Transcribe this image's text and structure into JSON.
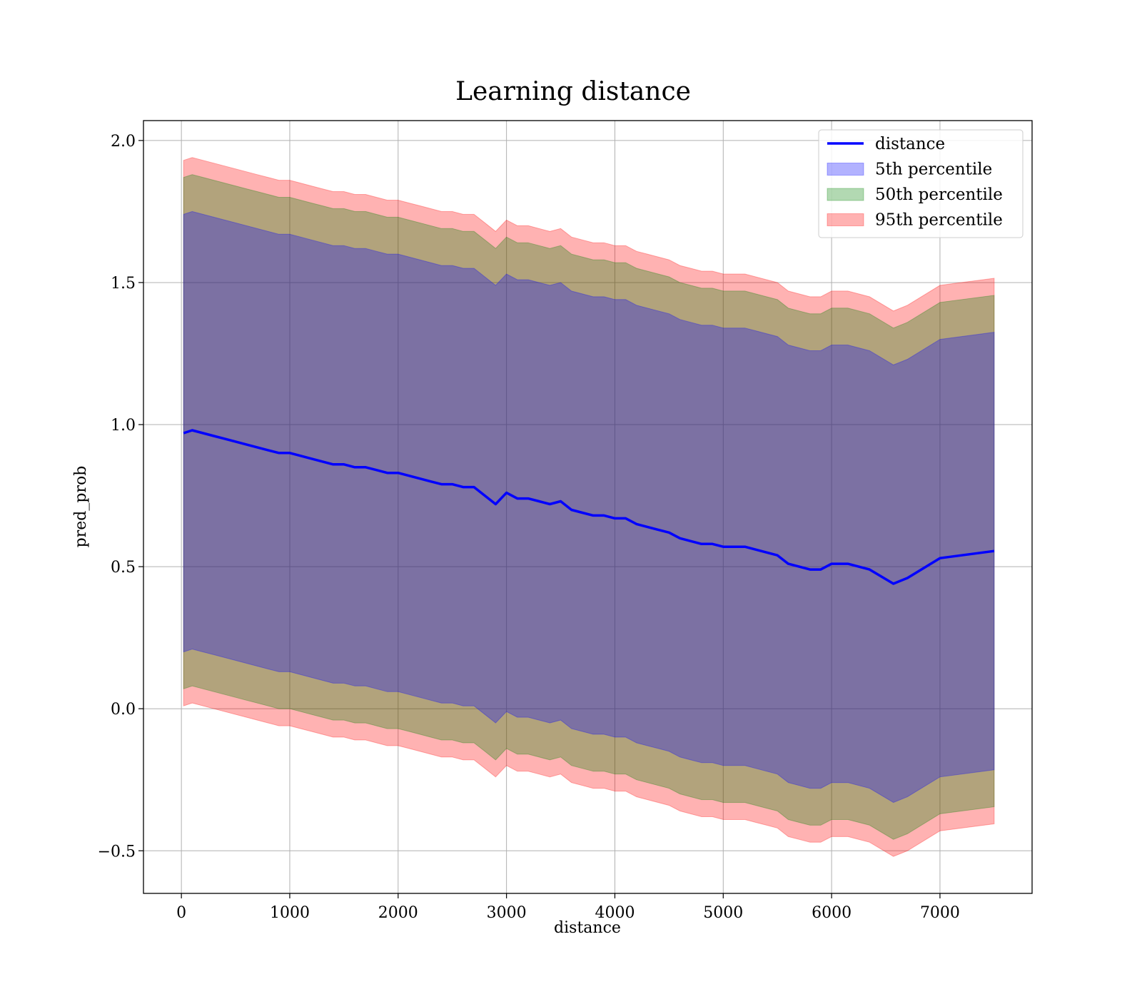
{
  "chart_data": {
    "type": "line",
    "title": "Learning distance",
    "xlabel": "distance",
    "ylabel": "pred_prob",
    "xlim": [
      -350,
      7850
    ],
    "ylim": [
      -0.65,
      2.07
    ],
    "x_ticks": [
      0,
      1000,
      2000,
      3000,
      4000,
      5000,
      6000,
      7000
    ],
    "y_ticks": [
      -0.5,
      0.0,
      0.5,
      1.0,
      1.5,
      2.0
    ],
    "y_tick_labels": [
      "−0.5",
      "0.0",
      "0.5",
      "1.0",
      "1.5",
      "2.0"
    ],
    "grid": true,
    "legend_position": "upper right",
    "x": [
      20,
      100,
      200,
      300,
      400,
      500,
      600,
      700,
      800,
      900,
      1000,
      1100,
      1200,
      1300,
      1400,
      1500,
      1600,
      1700,
      1800,
      1900,
      2000,
      2100,
      2200,
      2300,
      2400,
      2500,
      2600,
      2700,
      2800,
      2900,
      3000,
      3100,
      3200,
      3300,
      3400,
      3500,
      3600,
      3700,
      3800,
      3900,
      4000,
      4100,
      4200,
      4300,
      4400,
      4500,
      4600,
      4700,
      4800,
      4900,
      5000,
      5100,
      5200,
      5300,
      5400,
      5500,
      5600,
      5700,
      5800,
      5900,
      6000,
      6150,
      6350,
      6570,
      6700,
      7000,
      7500
    ],
    "series": [
      {
        "name": "distance",
        "kind": "line",
        "color": "#0000ff",
        "values": [
          0.97,
          0.98,
          0.97,
          0.96,
          0.95,
          0.94,
          0.93,
          0.92,
          0.91,
          0.9,
          0.9,
          0.89,
          0.88,
          0.87,
          0.86,
          0.86,
          0.85,
          0.85,
          0.84,
          0.83,
          0.83,
          0.82,
          0.81,
          0.8,
          0.79,
          0.79,
          0.78,
          0.78,
          0.75,
          0.72,
          0.76,
          0.74,
          0.74,
          0.73,
          0.72,
          0.73,
          0.7,
          0.69,
          0.68,
          0.68,
          0.67,
          0.67,
          0.65,
          0.64,
          0.63,
          0.62,
          0.6,
          0.59,
          0.58,
          0.58,
          0.57,
          0.57,
          0.57,
          0.56,
          0.55,
          0.54,
          0.51,
          0.5,
          0.49,
          0.49,
          0.51,
          0.51,
          0.49,
          0.44,
          0.46,
          0.53,
          0.555
        ]
      },
      {
        "name": "5th percentile",
        "kind": "band",
        "color": "#0000ff",
        "lower_offset": 0.77,
        "upper_offset": 0.77
      },
      {
        "name": "50th percentile",
        "kind": "band",
        "color": "#008000",
        "lower_offset": 0.9,
        "upper_offset": 0.9
      },
      {
        "name": "95th percentile",
        "kind": "band",
        "color": "#ff0000",
        "lower_offset": 0.96,
        "upper_offset": 0.96
      }
    ]
  }
}
